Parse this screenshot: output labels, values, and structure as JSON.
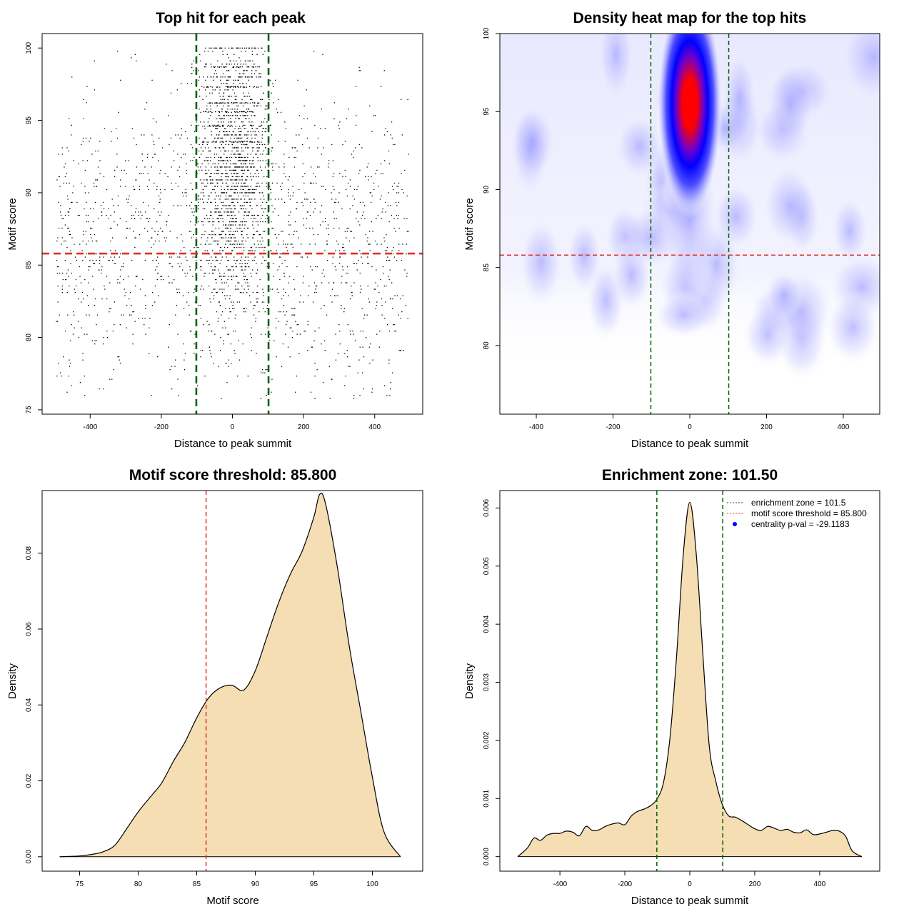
{
  "chart_data": [
    {
      "type": "scatter",
      "title": "Top hit for each peak",
      "xlabel": "Distance to peak summit",
      "ylabel": "Motif score",
      "xlim": [
        -535,
        535
      ],
      "ylim": [
        74.7,
        101
      ],
      "xticks": [
        -400,
        -200,
        0,
        200,
        400
      ],
      "yticks": [
        75,
        80,
        85,
        90,
        95,
        100
      ],
      "xtick_labels": [
        "-400",
        "-200",
        "0",
        "200",
        "400"
      ],
      "ytick_labels": [
        "75",
        "80",
        "85",
        "90",
        "95",
        "100"
      ],
      "vlines": [
        -101.5,
        101.5
      ],
      "hline": 85.8,
      "vline_color": "#006400",
      "hline_color": "#e0302a",
      "point_color": "#000000",
      "grid": false
    },
    {
      "type": "heatmap",
      "title": "Density heat map for the top hits",
      "xlabel": "Distance to peak summit",
      "ylabel": "Motif score",
      "xlim": [
        -495,
        495
      ],
      "ylim": [
        75.6,
        100
      ],
      "xticks": [
        -400,
        -200,
        0,
        200,
        400
      ],
      "yticks": [
        80,
        85,
        90,
        95,
        100
      ],
      "xtick_labels": [
        "-400",
        "-200",
        "0",
        "200",
        "400"
      ],
      "ytick_labels": [
        "80",
        "85",
        "90",
        "95",
        "100"
      ],
      "hotspot": {
        "x": 0,
        "y": 95.5
      },
      "vlines": [
        -101.5,
        101.5
      ],
      "hline": 85.8,
      "colors": [
        "#ffffff",
        "#0000ff",
        "#ff0000"
      ],
      "vline_color": "#006400",
      "hline_color": "#e0302a"
    },
    {
      "type": "area",
      "title": "Motif score threshold: 85.800",
      "xlabel": "Motif score",
      "ylabel": "Density",
      "xlim": [
        71.8,
        104.3
      ],
      "ylim": [
        -0.0038,
        0.0965
      ],
      "xticks": [
        75,
        80,
        85,
        90,
        95,
        100
      ],
      "yticks": [
        0,
        0.02,
        0.04,
        0.06,
        0.08
      ],
      "xtick_labels": [
        "75",
        "80",
        "85",
        "90",
        "95",
        "100"
      ],
      "ytick_labels": [
        "0.00",
        "0.02",
        "0.04",
        "0.06",
        "0.08"
      ],
      "x": [
        73.3,
        75,
        76,
        77,
        78,
        79,
        80,
        81,
        82,
        83,
        84,
        85,
        86,
        87,
        88,
        89,
        90,
        91,
        92,
        93,
        94,
        95,
        95.5,
        96,
        97,
        98,
        99,
        100,
        101,
        102.4
      ],
      "y": [
        0,
        0.0002,
        0.0006,
        0.0013,
        0.003,
        0.0073,
        0.0118,
        0.0156,
        0.0194,
        0.0251,
        0.0302,
        0.0366,
        0.0418,
        0.0445,
        0.0452,
        0.0439,
        0.049,
        0.058,
        0.067,
        0.0745,
        0.0805,
        0.0895,
        0.0955,
        0.093,
        0.0765,
        0.056,
        0.0385,
        0.021,
        0.0065,
        0
      ],
      "vline": 85.8,
      "fill_color": "#f5deb3",
      "vline_color": "#e0302a"
    },
    {
      "type": "area",
      "title": "Enrichment zone: 101.50",
      "xlabel": "Distance to peak summit",
      "ylabel": "Density",
      "xlim": [
        -585,
        585
      ],
      "ylim": [
        -0.00025,
        0.0063
      ],
      "xticks": [
        -400,
        -200,
        0,
        200,
        400
      ],
      "yticks": [
        0,
        0.001,
        0.002,
        0.003,
        0.004,
        0.005,
        0.006
      ],
      "xtick_labels": [
        "-400",
        "-200",
        "0",
        "200",
        "400"
      ],
      "ytick_labels": [
        "0.000",
        "0.001",
        "0.002",
        "0.003",
        "0.004",
        "0.005",
        "0.006"
      ],
      "x": [
        -530,
        -500,
        -480,
        -460,
        -440,
        -420,
        -400,
        -380,
        -360,
        -340,
        -320,
        -300,
        -280,
        -260,
        -240,
        -220,
        -200,
        -180,
        -160,
        -140,
        -120,
        -100,
        -80,
        -60,
        -40,
        -20,
        0,
        20,
        40,
        60,
        80,
        100,
        120,
        140,
        160,
        180,
        200,
        220,
        240,
        260,
        280,
        300,
        320,
        340,
        360,
        380,
        400,
        420,
        440,
        460,
        480,
        500,
        530
      ],
      "y": [
        0,
        0.00015,
        0.00032,
        0.00028,
        0.00037,
        0.0004,
        0.0004,
        0.00044,
        0.00042,
        0.00036,
        0.00052,
        0.00045,
        0.00046,
        0.00052,
        0.00056,
        0.00058,
        0.00055,
        0.0007,
        0.00078,
        0.00082,
        0.00088,
        0.001,
        0.0013,
        0.0021,
        0.0035,
        0.0052,
        0.0061,
        0.0052,
        0.0035,
        0.0019,
        0.0013,
        0.0009,
        0.0007,
        0.00068,
        0.00062,
        0.00055,
        0.00048,
        0.00045,
        0.00052,
        0.00049,
        0.00045,
        0.00047,
        0.00042,
        0.00041,
        0.00046,
        0.00038,
        0.00039,
        0.00042,
        0.00045,
        0.00044,
        0.00035,
        0.0001,
        0
      ],
      "vlines": [
        -101.5,
        101.5
      ],
      "fill_color": "#f5deb3",
      "vline_color": "#006400",
      "legend": {
        "placement": "top-right",
        "items": [
          {
            "label": "enrichment zone = 101.5",
            "color": "#006400",
            "style": "dotted-line"
          },
          {
            "label": "motif score threshold = 85.800",
            "color": "#e0302a",
            "style": "dotted-line"
          },
          {
            "label": "centrality p-val = -29.1183",
            "color": "#0000ff",
            "style": "point"
          }
        ]
      }
    }
  ]
}
